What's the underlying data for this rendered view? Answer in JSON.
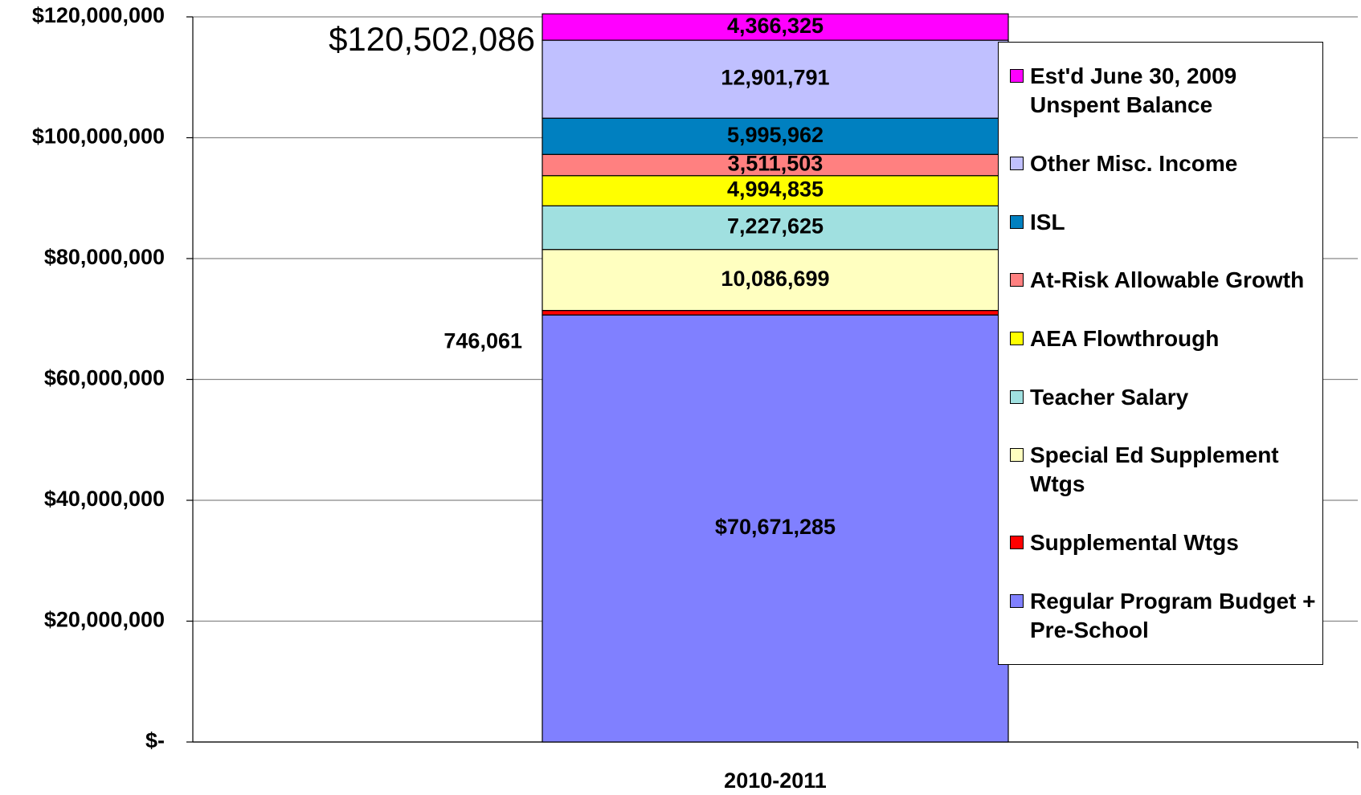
{
  "chart_data": {
    "type": "stacked_bar",
    "annotation": "$120,502,086",
    "categories": [
      "2010-2011"
    ],
    "series": [
      {
        "name": "Regular Program Budget + Pre-School",
        "color": "#8080ff",
        "values": [
          70671285
        ],
        "value_labels": [
          "$70,671,285"
        ]
      },
      {
        "name": "Supplemental Wtgs",
        "color": "#ff0000",
        "values": [
          746061
        ],
        "value_labels": [
          "746,061"
        ]
      },
      {
        "name": "Special Ed Supplement Wtgs",
        "color": "#ffffc0",
        "values": [
          10086699
        ],
        "value_labels": [
          "10,086,699"
        ]
      },
      {
        "name": "Teacher Salary",
        "color": "#a0e0e0",
        "values": [
          7227625
        ],
        "value_labels": [
          "7,227,625"
        ]
      },
      {
        "name": "AEA Flowthrough",
        "color": "#ffff00",
        "values": [
          4994835
        ],
        "value_labels": [
          "4,994,835"
        ]
      },
      {
        "name": "At-Risk Allowable Growth",
        "color": "#ff8080",
        "values": [
          3511503
        ],
        "value_labels": [
          "3,511,503"
        ]
      },
      {
        "name": "ISL",
        "color": "#0080c0",
        "values": [
          5995962
        ],
        "value_labels": [
          "5,995,962"
        ]
      },
      {
        "name": "Other Misc. Income",
        "color": "#c0c0ff",
        "values": [
          12901791
        ],
        "value_labels": [
          "12,901,791"
        ]
      },
      {
        "name": "Est'd June 30, 2009 Unspent Balance",
        "color": "#ff00ff",
        "values": [
          4366325
        ],
        "value_labels": [
          "4,366,325"
        ]
      }
    ],
    "ylim": [
      0,
      120000000
    ],
    "yticks": [
      {
        "value": 0,
        "label": "$-"
      },
      {
        "value": 20000000,
        "label": "$20,000,000"
      },
      {
        "value": 40000000,
        "label": "$40,000,000"
      },
      {
        "value": 60000000,
        "label": "$60,000,000"
      },
      {
        "value": 80000000,
        "label": "$80,000,000"
      },
      {
        "value": 100000000,
        "label": "$100,000,000"
      },
      {
        "value": 120000000,
        "label": "$120,000,000"
      }
    ],
    "grid": true
  }
}
